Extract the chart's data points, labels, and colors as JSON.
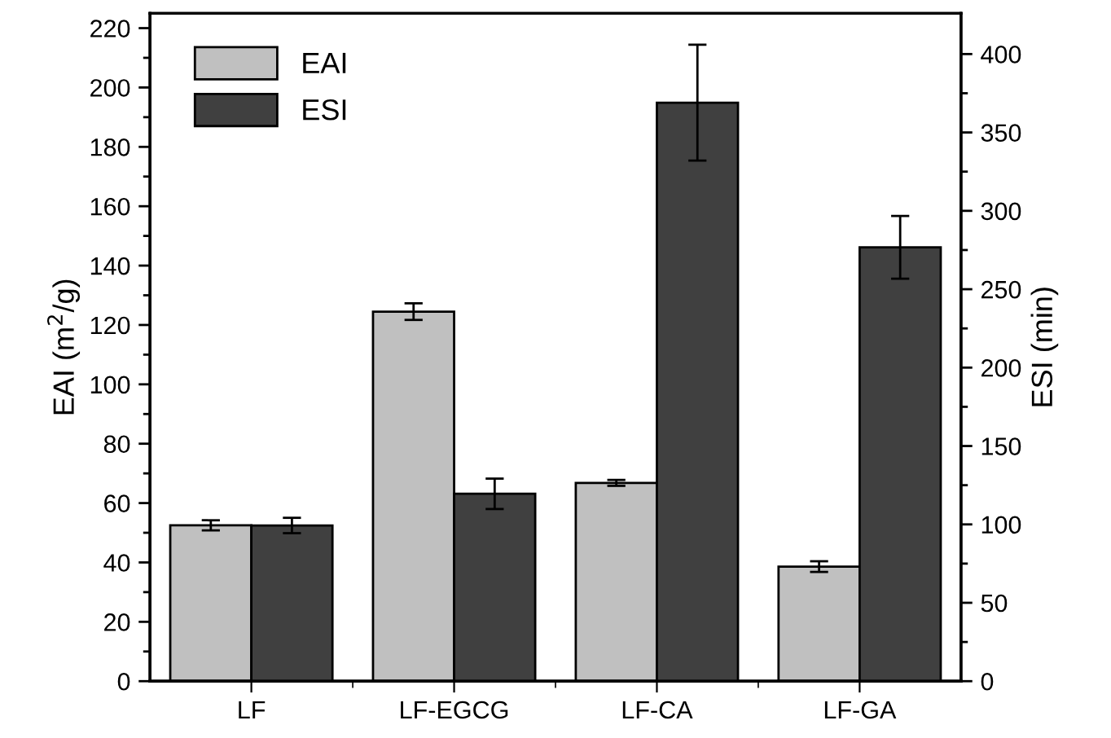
{
  "chart_data": {
    "type": "bar",
    "categories": [
      "LF",
      "LF-EGCG",
      "LF-CA",
      "LF-GA"
    ],
    "ylabel": "EAI (m$^{2}$/g)",
    "y2label": "ESI (min)",
    "series": [
      {
        "name": "EAI",
        "color": "#c0c0c0",
        "values": [
          52.5,
          124.5,
          66.8,
          38.6
        ],
        "errors": [
          1.7,
          2.8,
          1.0,
          1.8
        ]
      },
      {
        "name": "ESI",
        "color": "#404040",
        "axis": "y2",
        "values": [
          99.3,
          119.5,
          369,
          276.7
        ],
        "errors": [
          4.9,
          9.7,
          37,
          20
        ]
      }
    ],
    "ylim": [
      0,
      225
    ],
    "yticks": [
      0,
      {
        "value": 10,
        "label": null
      },
      20,
      {
        "value": 30,
        "label": null
      },
      40,
      {
        "value": 50,
        "label": null
      },
      60,
      {
        "value": 70,
        "label": null
      },
      80,
      {
        "value": 90,
        "label": null
      },
      100,
      {
        "value": 110,
        "label": null
      },
      120,
      {
        "value": 130,
        "label": null
      },
      140,
      {
        "value": 150,
        "label": null
      },
      160,
      {
        "value": 170,
        "label": null
      },
      180,
      {
        "value": 190,
        "label": null
      },
      200,
      {
        "value": 210,
        "label": null
      },
      220
    ],
    "y2lim": [
      0,
      426
    ],
    "y2ticks": [
      0,
      {
        "value": 25,
        "label": null
      },
      50,
      {
        "value": 75,
        "label": null
      },
      100,
      {
        "value": 125,
        "label": null
      },
      150,
      {
        "value": 175,
        "label": null
      },
      200,
      {
        "value": 225,
        "label": null
      },
      250,
      {
        "value": 275,
        "label": null
      },
      300,
      {
        "value": 325,
        "label": null
      },
      350,
      {
        "value": 375,
        "label": null
      },
      400
    ],
    "legend": "top left",
    "grid": false
  }
}
